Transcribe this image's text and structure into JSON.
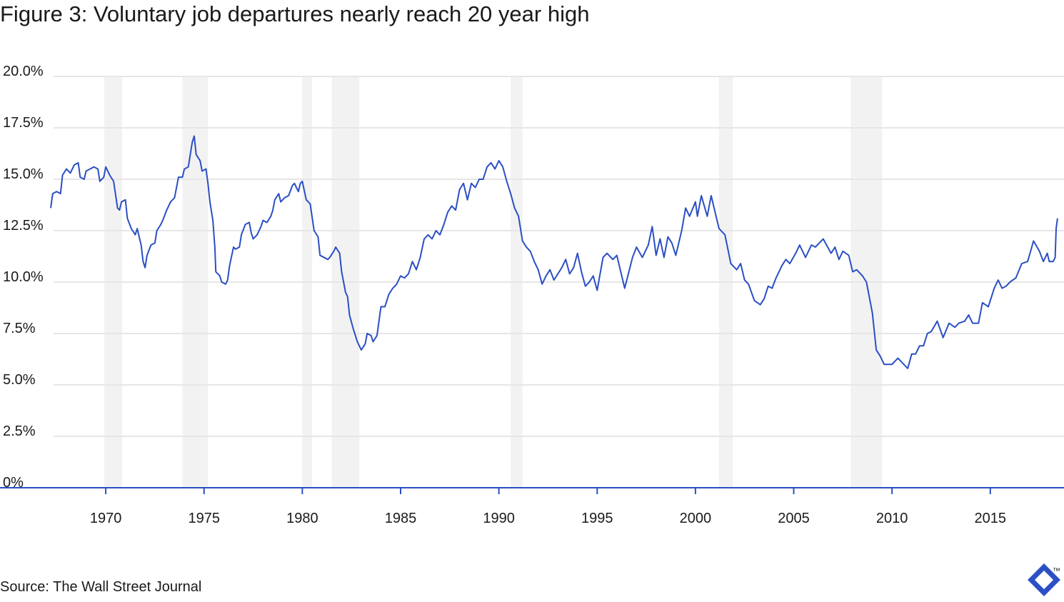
{
  "chart_data": {
    "type": "line",
    "title": "Figure 3: Voluntary job departures nearly reach 20 year high",
    "source": "Source: The Wall Street Journal",
    "logo_text": "™",
    "color": "#2b4fc4",
    "band_color": "#f2f2f2",
    "grid": true,
    "xlim": [
      1964.62,
      2018.75
    ],
    "ylim": [
      0,
      20
    ],
    "xticks": [
      1970,
      1975,
      1980,
      1985,
      1990,
      1995,
      2000,
      2005,
      2010,
      2015
    ],
    "yticks": [
      {
        "value": 0,
        "label": "0%"
      },
      {
        "value": 2.5,
        "label": "2.5%"
      },
      {
        "value": 5,
        "label": "5.0%"
      },
      {
        "value": 7.5,
        "label": "7.5%"
      },
      {
        "value": 10,
        "label": "10.0%"
      },
      {
        "value": 12.5,
        "label": "12.5%"
      },
      {
        "value": 15,
        "label": "15.0%"
      },
      {
        "value": 17.5,
        "label": "17.5%"
      },
      {
        "value": 20,
        "label": "20.0%"
      }
    ],
    "recessions": [
      [
        1969.92,
        1970.83
      ],
      [
        1973.9,
        1975.2
      ],
      [
        1980.0,
        1980.5
      ],
      [
        1981.5,
        1982.9
      ],
      [
        1990.6,
        1991.2
      ],
      [
        2001.2,
        2001.9
      ],
      [
        2007.9,
        2009.5
      ]
    ],
    "x": [
      1967.2,
      1967.3,
      1967.5,
      1967.7,
      1967.8,
      1968.0,
      1968.2,
      1968.4,
      1968.6,
      1968.7,
      1968.9,
      1969.0,
      1969.2,
      1969.4,
      1969.6,
      1969.7,
      1969.9,
      1970.0,
      1970.2,
      1970.4,
      1970.6,
      1970.7,
      1970.8,
      1971.0,
      1971.1,
      1971.3,
      1971.5,
      1971.6,
      1971.8,
      1971.9,
      1972.0,
      1972.1,
      1972.3,
      1972.5,
      1972.6,
      1972.8,
      1972.9,
      1973.1,
      1973.3,
      1973.5,
      1973.7,
      1973.9,
      1974.0,
      1974.2,
      1974.4,
      1974.5,
      1974.6,
      1974.8,
      1974.9,
      1975.1,
      1975.2,
      1975.3,
      1975.45,
      1975.55,
      1975.6,
      1975.8,
      1975.9,
      1976.1,
      1976.2,
      1976.3,
      1976.5,
      1976.6,
      1976.8,
      1976.9,
      1977.1,
      1977.3,
      1977.4,
      1977.5,
      1977.7,
      1977.9,
      1978.0,
      1978.2,
      1978.4,
      1978.5,
      1978.6,
      1978.8,
      1978.9,
      1979.1,
      1979.3,
      1979.5,
      1979.6,
      1979.8,
      1979.9,
      1980.0,
      1980.2,
      1980.4,
      1980.6,
      1980.8,
      1980.9,
      1981.1,
      1981.3,
      1981.4,
      1981.6,
      1981.7,
      1981.9,
      1982.0,
      1982.2,
      1982.3,
      1982.4,
      1982.6,
      1982.8,
      1983.0,
      1983.2,
      1983.3,
      1983.5,
      1983.6,
      1983.8,
      1984.0,
      1984.2,
      1984.4,
      1984.6,
      1984.8,
      1985.0,
      1985.2,
      1985.4,
      1985.6,
      1985.8,
      1986.0,
      1986.2,
      1986.4,
      1986.6,
      1986.8,
      1987.0,
      1987.2,
      1987.4,
      1987.6,
      1987.8,
      1988.0,
      1988.2,
      1988.4,
      1988.6,
      1988.8,
      1989.0,
      1989.2,
      1989.4,
      1989.6,
      1989.8,
      1990.0,
      1990.2,
      1990.4,
      1990.6,
      1990.8,
      1991.0,
      1991.2,
      1991.4,
      1991.6,
      1991.8,
      1992.0,
      1992.2,
      1992.4,
      1992.6,
      1992.8,
      1993.2,
      1993.4,
      1993.6,
      1993.8,
      1994.0,
      1994.2,
      1994.4,
      1994.6,
      1994.8,
      1995.0,
      1995.3,
      1995.5,
      1995.8,
      1996.0,
      1996.4,
      1996.8,
      1997.0,
      1997.3,
      1997.6,
      1997.8,
      1998.0,
      1998.2,
      1998.4,
      1998.6,
      1998.8,
      1999.0,
      1999.3,
      1999.5,
      1999.7,
      2000.0,
      2000.1,
      2000.3,
      2000.6,
      2000.8,
      2001.0,
      2001.2,
      2001.5,
      2001.8,
      2002.1,
      2002.3,
      2002.5,
      2002.7,
      2003.0,
      2003.3,
      2003.5,
      2003.7,
      2003.9,
      2004.1,
      2004.4,
      2004.6,
      2004.8,
      2005.1,
      2005.3,
      2005.6,
      2005.9,
      2006.1,
      2006.5,
      2006.9,
      2007.1,
      2007.3,
      2007.5,
      2007.8,
      2008.0,
      2008.2,
      2008.5,
      2008.7,
      2009.0,
      2009.2,
      2009.4,
      2009.6,
      2009.8,
      2010.0,
      2010.3,
      2010.8,
      2011.0,
      2011.2,
      2011.4,
      2011.6,
      2011.8,
      2012.0,
      2012.3,
      2012.6,
      2012.9,
      2013.2,
      2013.4,
      2013.7,
      2013.9,
      2014.1,
      2014.4,
      2014.6,
      2014.9,
      2015.2,
      2015.4,
      2015.6,
      2015.8,
      2016.0,
      2016.3,
      2016.6,
      2016.9,
      2017.2,
      2017.5,
      2017.7,
      2017.9,
      2018.0,
      2018.2,
      2018.3,
      2018.35,
      2018.42
    ],
    "values": [
      13.6,
      14.3,
      14.4,
      14.3,
      15.2,
      15.5,
      15.3,
      15.7,
      15.8,
      15.1,
      15.0,
      15.4,
      15.5,
      15.6,
      15.5,
      14.9,
      15.1,
      15.6,
      15.2,
      14.9,
      13.6,
      13.5,
      13.9,
      14.0,
      13.1,
      12.6,
      12.3,
      12.6,
      11.8,
      11.0,
      10.7,
      11.3,
      11.8,
      11.9,
      12.5,
      12.8,
      13.0,
      13.5,
      13.9,
      14.1,
      15.1,
      15.1,
      15.5,
      15.6,
      16.8,
      17.1,
      16.2,
      15.9,
      15.4,
      15.5,
      14.8,
      13.9,
      13.0,
      11.7,
      10.5,
      10.3,
      10.0,
      9.9,
      10.1,
      10.8,
      11.7,
      11.6,
      11.7,
      12.3,
      12.8,
      12.9,
      12.4,
      12.1,
      12.3,
      12.7,
      13.0,
      12.9,
      13.2,
      13.5,
      14.0,
      14.3,
      13.9,
      14.1,
      14.2,
      14.7,
      14.8,
      14.4,
      14.8,
      14.9,
      14.0,
      13.8,
      12.5,
      12.2,
      11.3,
      11.2,
      11.1,
      11.2,
      11.5,
      11.7,
      11.4,
      10.5,
      9.5,
      9.3,
      8.4,
      7.7,
      7.1,
      6.7,
      7.0,
      7.5,
      7.4,
      7.1,
      7.4,
      8.8,
      8.8,
      9.4,
      9.7,
      9.9,
      10.3,
      10.2,
      10.4,
      11.0,
      10.6,
      11.2,
      12.1,
      12.3,
      12.1,
      12.5,
      12.3,
      12.8,
      13.4,
      13.7,
      13.5,
      14.5,
      14.8,
      14.0,
      14.8,
      14.6,
      15.0,
      15.0,
      15.6,
      15.8,
      15.5,
      15.9,
      15.6,
      14.9,
      14.3,
      13.6,
      13.2,
      12.0,
      11.7,
      11.5,
      11.0,
      10.6,
      9.9,
      10.3,
      10.6,
      10.1,
      10.7,
      11.1,
      10.4,
      10.7,
      11.4,
      10.5,
      9.8,
      10.0,
      10.3,
      9.6,
      11.2,
      11.4,
      11.1,
      11.3,
      9.7,
      11.2,
      11.7,
      11.2,
      11.8,
      12.7,
      11.3,
      12.1,
      11.2,
      12.2,
      11.9,
      11.3,
      12.5,
      13.6,
      13.2,
      13.9,
      13.2,
      14.2,
      13.2,
      14.2,
      13.4,
      12.6,
      12.3,
      10.9,
      10.6,
      10.9,
      10.1,
      9.9,
      9.1,
      8.9,
      9.2,
      9.8,
      9.7,
      10.2,
      10.8,
      11.1,
      10.9,
      11.4,
      11.8,
      11.2,
      11.8,
      11.7,
      12.1,
      11.4,
      11.7,
      11.1,
      11.5,
      11.3,
      10.5,
      10.6,
      10.3,
      10.0,
      8.5,
      6.7,
      6.4,
      6.0,
      6.0,
      6.0,
      6.3,
      5.8,
      6.5,
      6.5,
      6.9,
      6.9,
      7.5,
      7.6,
      8.1,
      7.3,
      8.0,
      7.8,
      8.0,
      8.1,
      8.4,
      8.0,
      8.0,
      9.0,
      8.8,
      9.7,
      10.1,
      9.7,
      9.8,
      10.0,
      10.2,
      10.9,
      11.0,
      12.0,
      11.5,
      11.0,
      11.4,
      11.0,
      11.0,
      11.2,
      12.6,
      13.1
    ]
  }
}
